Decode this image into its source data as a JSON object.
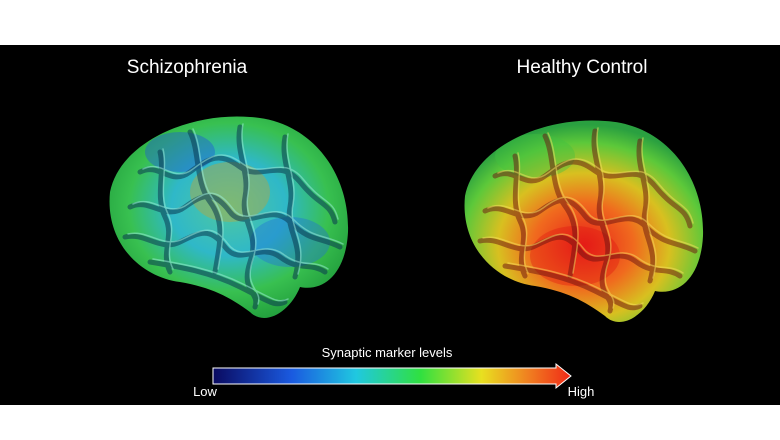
{
  "panels": [
    {
      "label": "Schizophrenia"
    },
    {
      "label": "Healthy Control"
    }
  ],
  "legend": {
    "title": "Synaptic marker levels",
    "low": "Low",
    "high": "High"
  }
}
